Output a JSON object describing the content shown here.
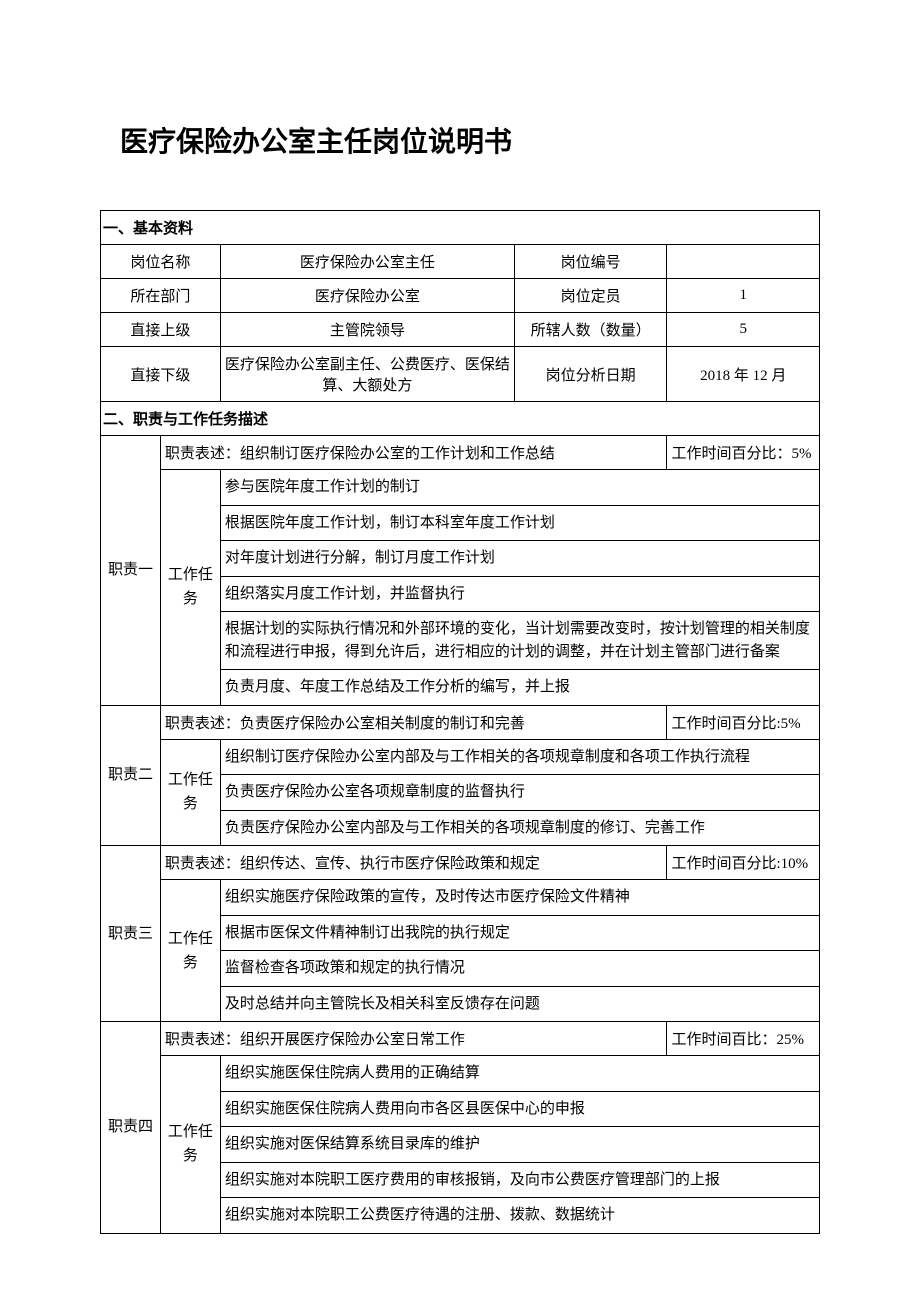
{
  "title": "医疗保险办公室主任岗位说明书",
  "section1": {
    "header": "一、基本资料",
    "rows": [
      {
        "l1": "岗位名称",
        "v1": "医疗保险办公室主任",
        "l2": "岗位编号",
        "v2": ""
      },
      {
        "l1": "所在部门",
        "v1": "医疗保险办公室",
        "l2": "岗位定员",
        "v2": "1"
      },
      {
        "l1": "直接上级",
        "v1": "主管院领导",
        "l2": "所辖人数（数量）",
        "v2": "5"
      },
      {
        "l1": "直接下级",
        "v1": "医疗保险办公室副主任、公费医疗、医保结算、大额处方",
        "l2": "岗位分析日期",
        "v2": "2018 年 12 月"
      }
    ]
  },
  "section2": {
    "header": "二、职责与工作任务描述",
    "task_label": "工作任务",
    "duties": [
      {
        "label": "职责一",
        "desc": "职责表述：组织制订医疗保险办公室的工作计划和工作总结",
        "time": "工作时间百分比：5%",
        "tasks": [
          "参与医院年度工作计划的制订",
          "根据医院年度工作计划，制订本科室年度工作计划",
          "对年度计划进行分解，制订月度工作计划",
          "组织落实月度工作计划，并监督执行",
          "根据计划的实际执行情况和外部环境的变化，当计划需要改变时，按计划管理的相关制度和流程进行申报，得到允许后，进行相应的计划的调整，并在计划主管部门进行备案",
          "负责月度、年度工作总结及工作分析的编写，并上报"
        ]
      },
      {
        "label": "职责二",
        "desc": "职责表述：负责医疗保险办公室相关制度的制订和完善",
        "time": "工作时间百分比:5%",
        "tasks": [
          "组织制订医疗保险办公室内部及与工作相关的各项规章制度和各项工作执行流程",
          "负责医疗保险办公室各项规章制度的监督执行",
          "负责医疗保险办公室内部及与工作相关的各项规章制度的修订、完善工作"
        ]
      },
      {
        "label": "职责三",
        "desc": "职责表述：组织传达、宣传、执行市医疗保险政策和规定",
        "time": "工作时间百分比:10%",
        "tasks": [
          "组织实施医疗保险政策的宣传，及时传达市医疗保险文件精神",
          "根据市医保文件精神制订出我院的执行规定",
          "监督检查各项政策和规定的执行情况",
          "及时总结并向主管院长及相关科室反馈存在问题"
        ]
      },
      {
        "label": "职责四",
        "desc": "职责表述：组织开展医疗保险办公室日常工作",
        "time": "工作时间百比：25%",
        "tasks": [
          "组织实施医保住院病人费用的正确结算",
          "组织实施医保住院病人费用向市各区县医保中心的申报",
          "组织实施对医保结算系统目录库的维护",
          "组织实施对本院职工医疗费用的审核报销，及向市公费医疗管理部门的上报",
          "组织实施对本院职工公费医疗待遇的注册、拨款、数据统计"
        ]
      }
    ]
  }
}
